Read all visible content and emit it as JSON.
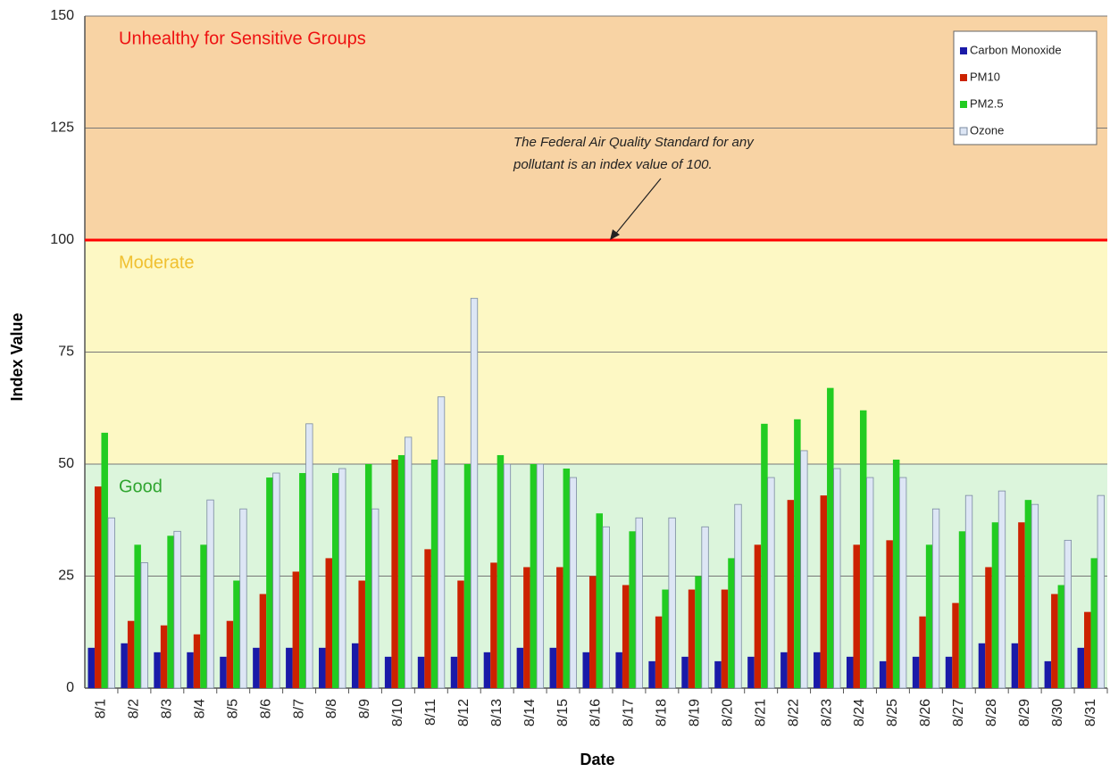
{
  "chart_data": {
    "type": "bar",
    "x_label": "Date",
    "y_label": "Index Value",
    "categories": [
      "8/1",
      "8/2",
      "8/3",
      "8/4",
      "8/5",
      "8/6",
      "8/7",
      "8/8",
      "8/9",
      "8/10",
      "8/11",
      "8/12",
      "8/13",
      "8/14",
      "8/15",
      "8/16",
      "8/17",
      "8/18",
      "8/19",
      "8/20",
      "8/21",
      "8/22",
      "8/23",
      "8/24",
      "8/25",
      "8/26",
      "8/27",
      "8/28",
      "8/29",
      "8/30",
      "8/31"
    ],
    "series": [
      {
        "name": "Carbon Monoxide",
        "color": "#1a1aa8",
        "values": [
          9,
          10,
          8,
          8,
          7,
          9,
          9,
          9,
          10,
          7,
          7,
          7,
          8,
          9,
          9,
          8,
          8,
          6,
          7,
          6,
          7,
          8,
          8,
          7,
          6,
          7,
          7,
          10,
          10,
          6,
          9
        ]
      },
      {
        "name": "PM10",
        "color": "#cc2200",
        "values": [
          45,
          15,
          14,
          12,
          15,
          21,
          26,
          29,
          24,
          51,
          31,
          24,
          28,
          27,
          27,
          25,
          23,
          16,
          22,
          22,
          32,
          42,
          43,
          32,
          33,
          16,
          19,
          27,
          37,
          21,
          17
        ]
      },
      {
        "name": "PM2.5",
        "color": "#22cc22",
        "values": [
          57,
          32,
          34,
          32,
          24,
          47,
          48,
          48,
          50,
          52,
          51,
          50,
          52,
          50,
          49,
          39,
          35,
          22,
          25,
          29,
          59,
          60,
          67,
          62,
          51,
          32,
          35,
          37,
          42,
          23,
          29
        ]
      },
      {
        "name": "Ozone",
        "color": "#dde6f5",
        "values": [
          38,
          28,
          35,
          42,
          40,
          48,
          59,
          49,
          40,
          56,
          65,
          87,
          50,
          50,
          47,
          36,
          38,
          38,
          36,
          41,
          47,
          53,
          49,
          47,
          47,
          40,
          43,
          44,
          41,
          33,
          43
        ]
      }
    ],
    "bands": [
      {
        "label": "Good",
        "from": 0,
        "to": 50,
        "color": "#dcf5dc",
        "text_color": "#2fa52f"
      },
      {
        "label": "Moderate",
        "from": 50,
        "to": 100,
        "color": "#fdf8c4",
        "text_color": "#f0c030"
      },
      {
        "label": "Unhealthy for Sensitive Groups",
        "from": 100,
        "to": 150,
        "color": "#f8d3a4",
        "text_color": "#ee1111"
      }
    ],
    "reference_line": {
      "value": 100,
      "color": "#ff0000"
    },
    "annotation": [
      "The Federal Air Quality Standard for any",
      "pollutant is an index value of 100."
    ],
    "ylim": [
      0,
      150
    ],
    "yticks": [
      0,
      25,
      50,
      75,
      100,
      125,
      150
    ],
    "grid": true,
    "legend": "upper right"
  }
}
